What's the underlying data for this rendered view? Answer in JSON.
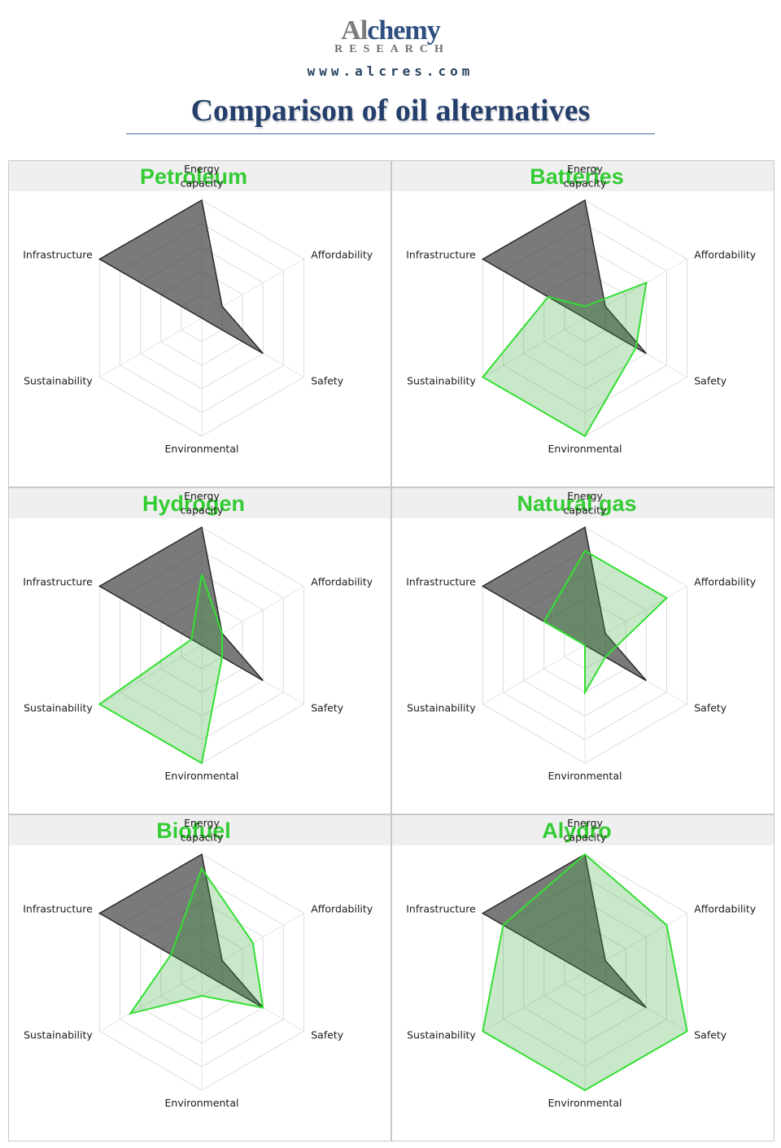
{
  "header": {
    "logo_part1": "Al",
    "logo_part2": "chemy",
    "logo_sub": "RESEARCH",
    "url": "www.alcres.com",
    "title": "Comparison of oil alternatives"
  },
  "chart_data": {
    "type": "radar",
    "axes": [
      "Energy\ncapacity",
      "Affordability",
      "Safety",
      "Environmental",
      "Sustainability",
      "Infrastructure"
    ],
    "scale_max": 5,
    "grid_levels": 5,
    "colors": {
      "petroleum": "#2a2a2a",
      "alternative": "#33e033",
      "title": "#33cc33"
    },
    "panels": [
      {
        "title": "Petroleum",
        "series": [
          {
            "name": "",
            "values": [
              5,
              1,
              3,
              0,
              0,
              5
            ]
          }
        ]
      },
      {
        "title": "Batteries",
        "series": [
          {
            "name": "",
            "values": [
              5,
              1,
              3,
              0,
              0,
              5
            ]
          },
          {
            "name": "",
            "values": [
              0.5,
              3,
              2.5,
              5,
              5,
              1.8
            ]
          }
        ]
      },
      {
        "title": "Hydrogen",
        "series": [
          {
            "name": "",
            "values": [
              5,
              1,
              3,
              0,
              0,
              5
            ]
          },
          {
            "name": "",
            "values": [
              3,
              1,
              1,
              5,
              5,
              0.5
            ]
          }
        ]
      },
      {
        "title": "Natural gas",
        "series": [
          {
            "name": "",
            "values": [
              5,
              1,
              3,
              0,
              0,
              5
            ]
          },
          {
            "name": "",
            "values": [
              4,
              4,
              1,
              2,
              0,
              2
            ]
          }
        ]
      },
      {
        "title": "Biofuel",
        "series": [
          {
            "name": "",
            "values": [
              5,
              1,
              3,
              0,
              0,
              5
            ]
          },
          {
            "name": "",
            "values": [
              4.4,
              2.5,
              3,
              1,
              3.5,
              1.5
            ]
          }
        ]
      },
      {
        "title": "Alydro",
        "series": [
          {
            "name": "",
            "values": [
              5,
              1,
              3,
              0,
              0,
              5
            ]
          },
          {
            "name": "",
            "values": [
              5,
              4,
              5,
              5,
              5,
              4
            ]
          }
        ]
      }
    ]
  }
}
